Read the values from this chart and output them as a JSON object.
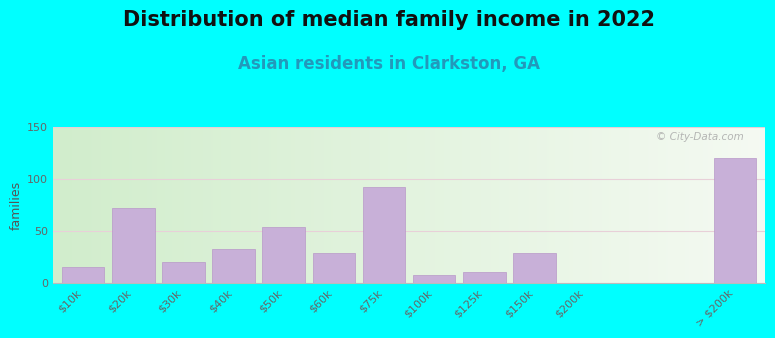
{
  "title": "Distribution of median family income in 2022",
  "subtitle": "Asian residents in Clarkston, GA",
  "ylabel": "families",
  "background_outer": "#00ffff",
  "bar_color": "#c8b0d8",
  "bar_edge_color": "#b898c8",
  "watermark": "© City-Data.com",
  "categories": [
    "$10k",
    "$20k",
    "$30k",
    "$40k",
    "$50k",
    "$60k",
    "$75k",
    "$100k",
    "$125k",
    "$150k",
    "$200k",
    "> $200k"
  ],
  "values": [
    15,
    72,
    20,
    32,
    53,
    28,
    92,
    7,
    10,
    28,
    0,
    120
  ],
  "ylim": [
    0,
    150
  ],
  "yticks": [
    0,
    50,
    100,
    150
  ],
  "title_fontsize": 15,
  "subtitle_fontsize": 12,
  "ylabel_fontsize": 9,
  "tick_fontsize": 8,
  "grid_color": "#e8d0d8",
  "grad_left": "#c8e8c0",
  "grad_right": "#f0f5ee"
}
